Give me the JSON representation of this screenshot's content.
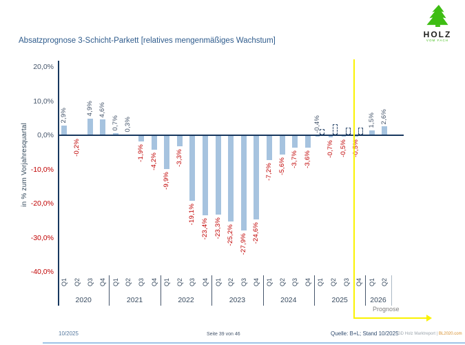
{
  "title": "Absatzprognose 3-Schicht-Parkett [relatives mengenmäßiges Wachstum]",
  "logo": {
    "name": "HOLZ",
    "sub": "VOM FACH"
  },
  "prognose_label": "Prognose",
  "footer": {
    "left": "10/2025",
    "center": "Seite 39 von 46",
    "source": "Quelle: B+L; Stand 10/2025",
    "brand": "GD Holz Marktreport |",
    "brand_link": "BL2020.com"
  },
  "chart_data": {
    "type": "bar",
    "title": "Absatzprognose 3-Schicht-Parkett [relatives mengenmäßiges Wachstum]",
    "ylabel": "in % zum Vorjahresquartal",
    "ylim": [
      -40,
      20
    ],
    "yticks": [
      20,
      10,
      0,
      -10,
      -20,
      -30,
      -40
    ],
    "grid": false,
    "legend": false,
    "value_format": "de-percent-1dp",
    "quarter_labels": [
      "Q1",
      "Q2",
      "Q3",
      "Q4"
    ],
    "forecast_divider_after": "2025 Q3",
    "groups": [
      {
        "year": "2020",
        "values": [
          2.9,
          -0.2,
          4.9,
          4.6
        ]
      },
      {
        "year": "2021",
        "values": [
          0.7,
          0.3,
          -1.9,
          -4.2
        ]
      },
      {
        "year": "2022",
        "values": [
          -9.9,
          -3.3,
          -19.1,
          -23.4
        ]
      },
      {
        "year": "2023",
        "values": [
          -23.3,
          -25.2,
          -27.9,
          -24.6
        ]
      },
      {
        "year": "2024",
        "values": [
          -7.2,
          -5.6,
          -3.7,
          -3.6
        ]
      },
      {
        "year": "2025",
        "values": [
          -0.4,
          -0.7,
          -0.5,
          -0.5
        ],
        "dashed": true,
        "label_position_above": [
          true,
          false,
          false,
          false
        ]
      },
      {
        "year": "2026",
        "values": [
          1.5,
          2.6
        ]
      }
    ]
  }
}
